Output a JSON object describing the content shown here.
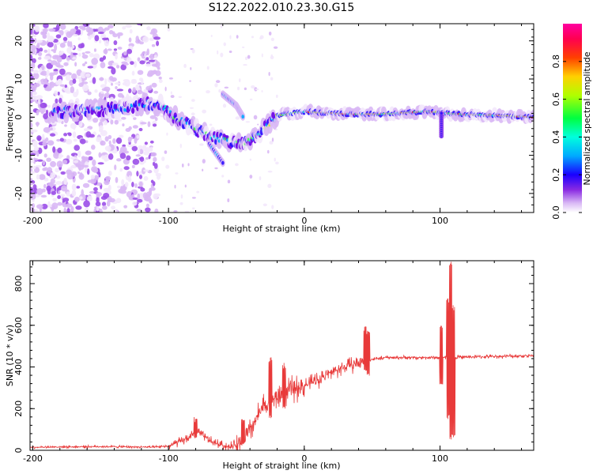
{
  "title": "S122.2022.010.23.30.G15",
  "chart_data": [
    {
      "type": "heatmap",
      "xlabel": "Height of straight line (km)",
      "ylabel": "Frequency (Hz)",
      "xlim": [
        -202,
        169
      ],
      "ylim": [
        -25,
        24.5
      ],
      "x_ticks": [
        "-200",
        "-100",
        "0",
        "100"
      ],
      "y_ticks": [
        "-20",
        "-10",
        "0",
        "10",
        "20"
      ],
      "colorbar": {
        "label": "Normalized spectral amplitude",
        "range": [
          0,
          1
        ],
        "ticks": [
          "0.0",
          "0.2",
          "0.4",
          "0.6",
          "0.8"
        ],
        "colormap": "hsv-like (purple-blue-cyan-green-yellow-red-magenta)"
      },
      "ridge": [
        {
          "x": -170,
          "y": 1.5
        },
        {
          "x": -150,
          "y": 2
        },
        {
          "x": -130,
          "y": 2.5
        },
        {
          "x": -115,
          "y": 3.5
        },
        {
          "x": -105,
          "y": 3
        },
        {
          "x": -95,
          "y": 0
        },
        {
          "x": -85,
          "y": -2
        },
        {
          "x": -75,
          "y": -4
        },
        {
          "x": -65,
          "y": -5.5
        },
        {
          "x": -55,
          "y": -6.5
        },
        {
          "x": -45,
          "y": -7
        },
        {
          "x": -38,
          "y": -6
        },
        {
          "x": -30,
          "y": -3
        },
        {
          "x": -20,
          "y": 0.5
        },
        {
          "x": 0,
          "y": 1.5
        },
        {
          "x": 30,
          "y": 0.8
        },
        {
          "x": 60,
          "y": 0.8
        },
        {
          "x": 90,
          "y": 1.5
        },
        {
          "x": 110,
          "y": 0.8
        },
        {
          "x": 140,
          "y": 0.5
        },
        {
          "x": 169,
          "y": 0
        }
      ],
      "secondary_branch": [
        {
          "x": -60,
          "y": 6
        },
        {
          "x": -50,
          "y": 3
        },
        {
          "x": -45,
          "y": 0
        }
      ],
      "lower_branch": [
        {
          "x": -70,
          "y": -7
        },
        {
          "x": -60,
          "y": -12
        }
      ],
      "spike": {
        "x": 101,
        "y_range": [
          -5,
          1
        ]
      }
    },
    {
      "type": "line",
      "xlabel": "Height of straight line (km)",
      "ylabel": "SNR (10 * v/v)",
      "xlim": [
        -202,
        169
      ],
      "ylim": [
        0,
        910
      ],
      "x_ticks": [
        "-200",
        "-100",
        "0",
        "100"
      ],
      "y_ticks": [
        "0",
        "200",
        "400",
        "600",
        "800"
      ],
      "color": "#e83a3a",
      "trend": [
        {
          "x": -202,
          "y": 15
        },
        {
          "x": -150,
          "y": 18
        },
        {
          "x": -110,
          "y": 15
        },
        {
          "x": -100,
          "y": 20
        },
        {
          "x": -90,
          "y": 45
        },
        {
          "x": -78,
          "y": 85
        },
        {
          "x": -68,
          "y": 40
        },
        {
          "x": -55,
          "y": 15
        },
        {
          "x": -45,
          "y": 40
        },
        {
          "x": -38,
          "y": 120
        },
        {
          "x": -30,
          "y": 210
        },
        {
          "x": -20,
          "y": 250
        },
        {
          "x": -10,
          "y": 290
        },
        {
          "x": 0,
          "y": 310
        },
        {
          "x": 10,
          "y": 340
        },
        {
          "x": 20,
          "y": 375
        },
        {
          "x": 30,
          "y": 400
        },
        {
          "x": 40,
          "y": 420
        },
        {
          "x": 48,
          "y": 435
        },
        {
          "x": 60,
          "y": 445
        },
        {
          "x": 80,
          "y": 445
        },
        {
          "x": 100,
          "y": 445
        },
        {
          "x": 120,
          "y": 448
        },
        {
          "x": 140,
          "y": 450
        },
        {
          "x": 169,
          "y": 455
        }
      ],
      "spikes": [
        {
          "x": -80,
          "min": 50,
          "max": 160
        },
        {
          "x": -45,
          "min": 20,
          "max": 150
        },
        {
          "x": -25,
          "min": 150,
          "max": 450
        },
        {
          "x": -15,
          "min": 200,
          "max": 420
        },
        {
          "x": 45,
          "min": 380,
          "max": 600
        },
        {
          "x": 47,
          "min": 350,
          "max": 580
        },
        {
          "x": 101,
          "min": 300,
          "max": 600
        },
        {
          "x": 106,
          "min": 150,
          "max": 730
        },
        {
          "x": 108,
          "min": 50,
          "max": 910
        },
        {
          "x": 110,
          "min": 60,
          "max": 700
        }
      ]
    }
  ]
}
